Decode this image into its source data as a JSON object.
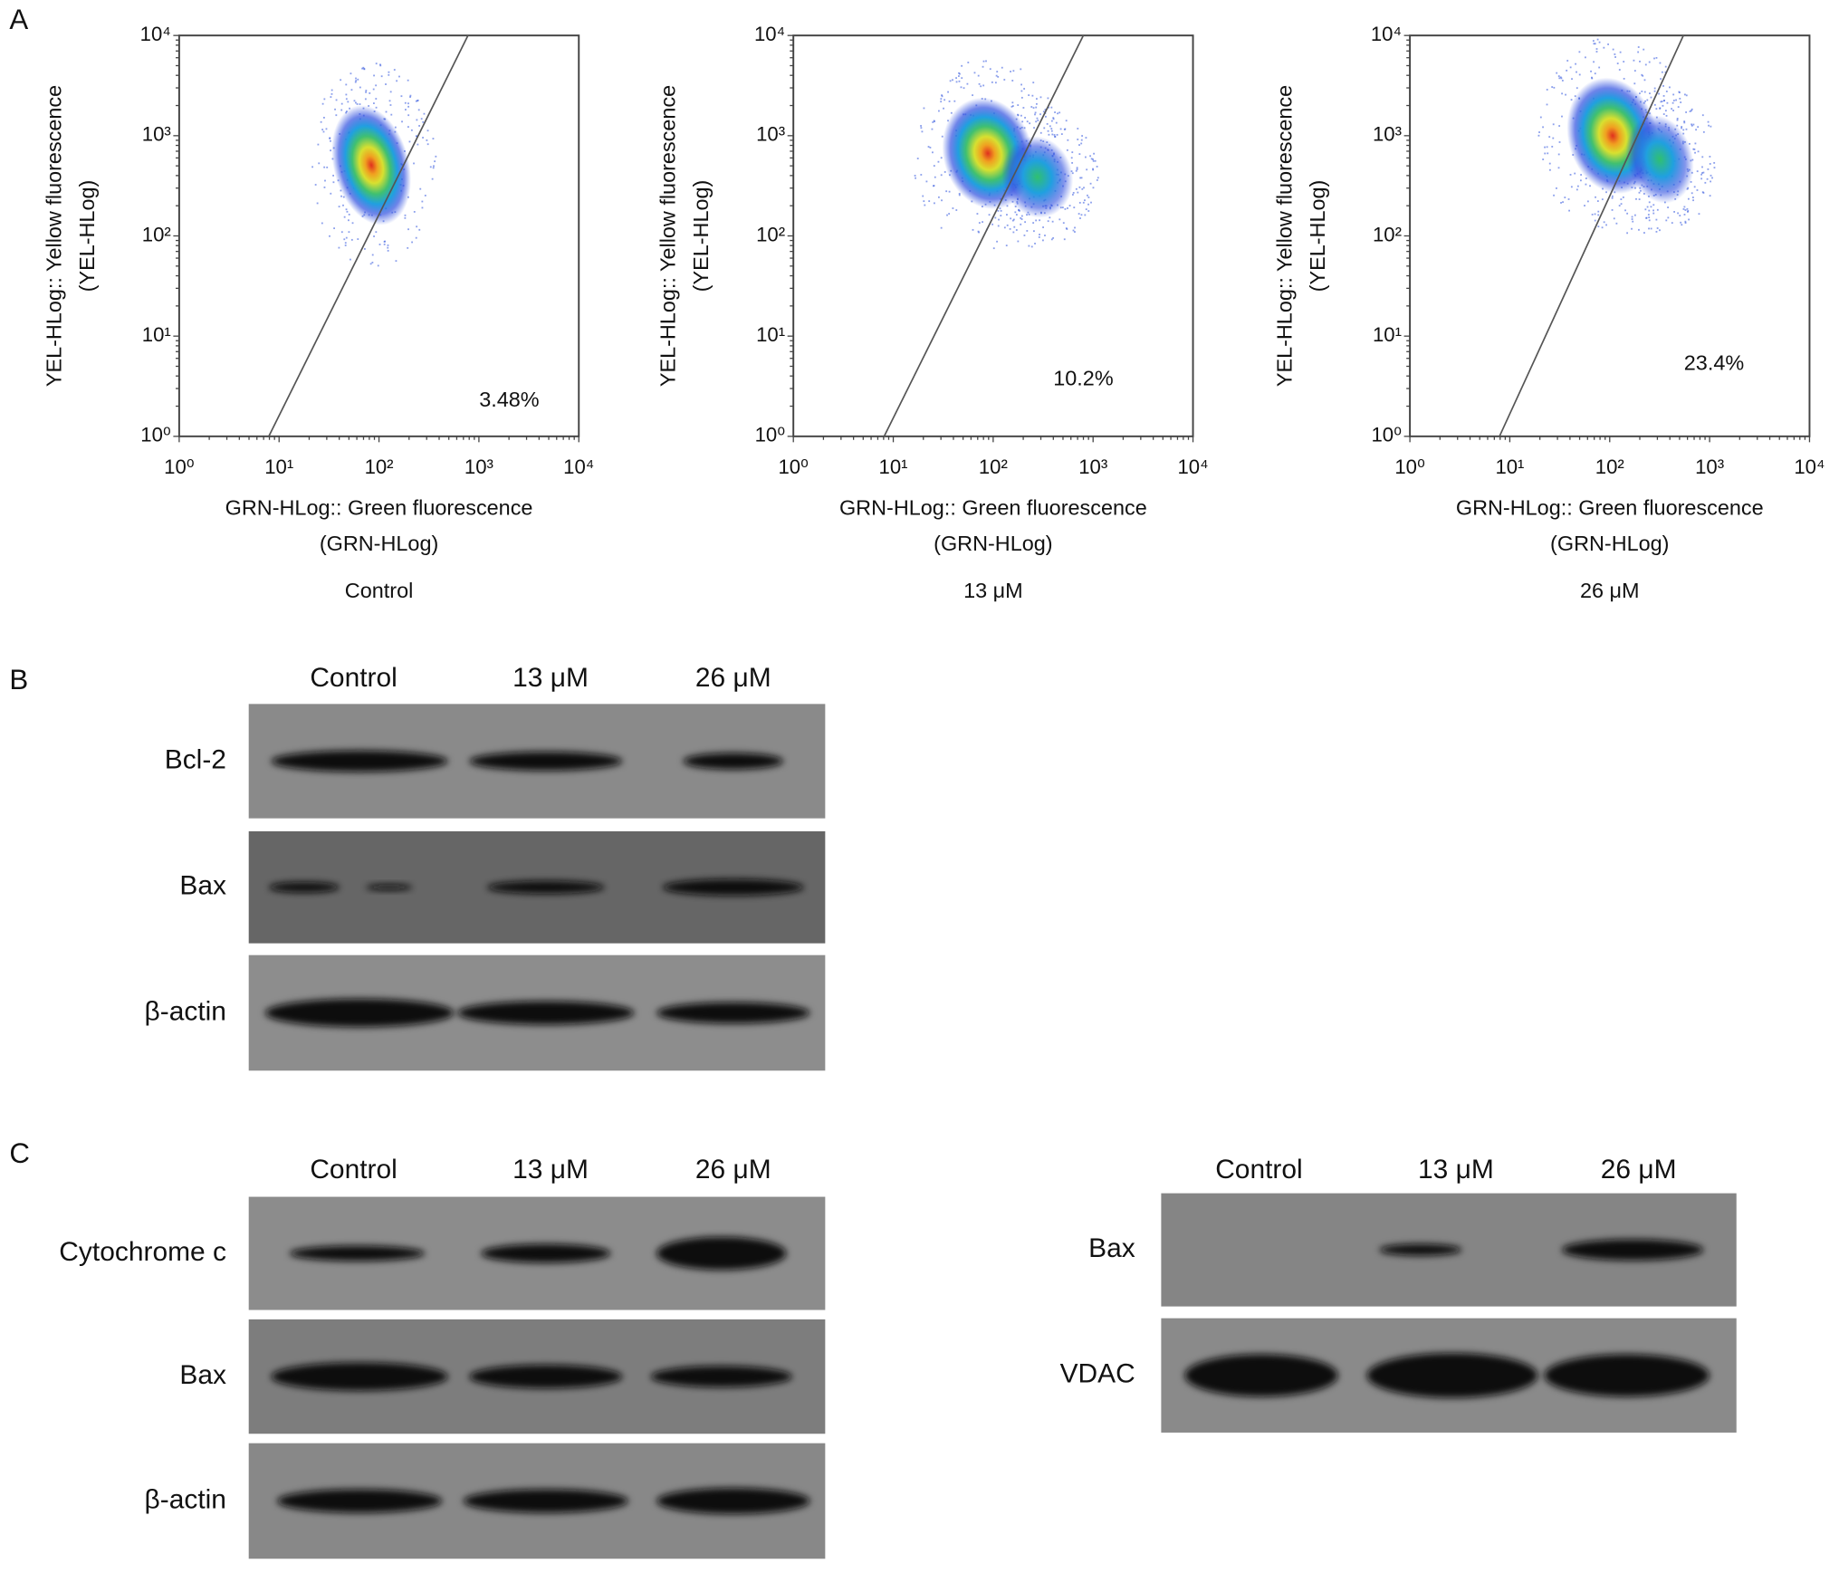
{
  "panels": [
    {
      "letter": "A",
      "x_ticks": [
        "10⁰",
        "10¹",
        "10²",
        "10³",
        "10⁴"
      ],
      "y_ticks": [
        "10⁰",
        "10¹",
        "10²",
        "10³",
        "10⁴"
      ],
      "plots": [
        {
          "y_label": [
            "YEL-HLog:: Yellow fluorescence",
            "(YEL-HLog)"
          ],
          "x_label": [
            "GRN-HLog:: Green fluorescence",
            "(GRN-HLog)"
          ],
          "percentage": "3.48%",
          "condition": "Control"
        },
        {
          "y_label": [
            "YEL-HLog:: Yellow fluorescence",
            "(YEL-HLog)"
          ],
          "x_label": [
            "GRN-HLog:: Green fluorescence",
            "(GRN-HLog)"
          ],
          "percentage": "10.2%",
          "condition": "13 μM"
        },
        {
          "y_label": [
            "YEL-HLog:: Yellow fluorescence",
            "(YEL-HLog)"
          ],
          "x_label": [
            "GRN-HLog:: Green fluorescence",
            "(GRN-HLog)"
          ],
          "percentage": "23.4%",
          "condition": "26 μM"
        }
      ]
    },
    {
      "letter": "B",
      "blots": [
        {
          "lanes": [
            "Control",
            "13 μM",
            "26 μM"
          ],
          "rows": [
            "Bcl-2",
            "Bax",
            "β-actin"
          ]
        }
      ]
    },
    {
      "letter": "C",
      "blots": [
        {
          "lanes": [
            "Control",
            "13 μM",
            "26 μM"
          ],
          "rows": [
            "Cytochrome c",
            "Bax",
            "β-actin"
          ]
        },
        {
          "lanes": [
            "Control",
            "13 μM",
            "26 μM"
          ],
          "rows": [
            "Bax",
            "VDAC"
          ]
        }
      ]
    }
  ]
}
